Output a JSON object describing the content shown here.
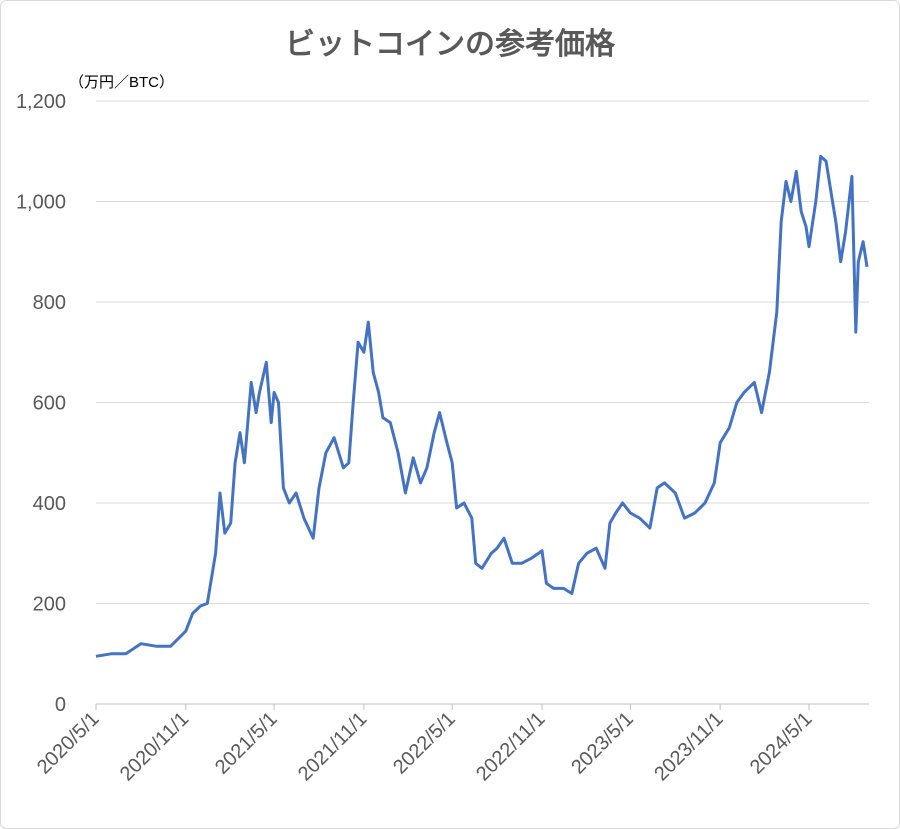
{
  "chart_data": {
    "type": "line",
    "title": "ビットコインの参考価格",
    "ylabel": "（万円／BTC）",
    "xlabel": "",
    "ylim": [
      0,
      1200
    ],
    "yticks": [
      0,
      200,
      400,
      600,
      800,
      1000,
      1200
    ],
    "ytick_labels": [
      "0",
      "200",
      "400",
      "600",
      "800",
      "1,000",
      "1,200"
    ],
    "xticks": [
      "2020/5/1",
      "2020/11/1",
      "2021/5/1",
      "2021/11/1",
      "2022/5/1",
      "2022/11/1",
      "2023/5/1",
      "2023/11/1",
      "2024/5/1"
    ],
    "xlim": [
      "2020/5/1",
      "2024/9/1"
    ],
    "grid": "horizontal",
    "color": "#4472C4",
    "series": [
      {
        "points": [
          [
            "2020/5/1",
            95
          ],
          [
            "2020/6/1",
            100
          ],
          [
            "2020/7/1",
            100
          ],
          [
            "2020/8/1",
            120
          ],
          [
            "2020/9/1",
            115
          ],
          [
            "2020/10/1",
            115
          ],
          [
            "2020/11/1",
            145
          ],
          [
            "2020/11/15",
            180
          ],
          [
            "2020/12/1",
            195
          ],
          [
            "2020/12/15",
            200
          ],
          [
            "2021/1/1",
            300
          ],
          [
            "2021/1/10",
            420
          ],
          [
            "2021/1/20",
            340
          ],
          [
            "2021/2/1",
            360
          ],
          [
            "2021/2/10",
            480
          ],
          [
            "2021/2/20",
            540
          ],
          [
            "2021/3/1",
            480
          ],
          [
            "2021/3/15",
            640
          ],
          [
            "2021/3/25",
            580
          ],
          [
            "2021/4/1",
            620
          ],
          [
            "2021/4/15",
            680
          ],
          [
            "2021/4/25",
            560
          ],
          [
            "2021/5/1",
            620
          ],
          [
            "2021/5/10",
            600
          ],
          [
            "2021/5/20",
            430
          ],
          [
            "2021/6/1",
            400
          ],
          [
            "2021/6/15",
            420
          ],
          [
            "2021/7/1",
            370
          ],
          [
            "2021/7/20",
            330
          ],
          [
            "2021/8/1",
            430
          ],
          [
            "2021/8/15",
            500
          ],
          [
            "2021/9/1",
            530
          ],
          [
            "2021/9/20",
            470
          ],
          [
            "2021/10/1",
            480
          ],
          [
            "2021/10/10",
            600
          ],
          [
            "2021/10/20",
            720
          ],
          [
            "2021/11/1",
            700
          ],
          [
            "2021/11/10",
            760
          ],
          [
            "2021/11/20",
            660
          ],
          [
            "2021/12/1",
            620
          ],
          [
            "2021/12/10",
            570
          ],
          [
            "2021/12/25",
            560
          ],
          [
            "2022/1/10",
            500
          ],
          [
            "2022/1/25",
            420
          ],
          [
            "2022/2/10",
            490
          ],
          [
            "2022/2/25",
            440
          ],
          [
            "2022/3/10",
            470
          ],
          [
            "2022/3/25",
            540
          ],
          [
            "2022/4/5",
            580
          ],
          [
            "2022/4/20",
            520
          ],
          [
            "2022/5/1",
            480
          ],
          [
            "2022/5/10",
            390
          ],
          [
            "2022/5/25",
            400
          ],
          [
            "2022/6/10",
            370
          ],
          [
            "2022/6/18",
            280
          ],
          [
            "2022/7/1",
            270
          ],
          [
            "2022/7/20",
            300
          ],
          [
            "2022/8/1",
            310
          ],
          [
            "2022/8/15",
            330
          ],
          [
            "2022/9/1",
            280
          ],
          [
            "2022/9/20",
            280
          ],
          [
            "2022/10/10",
            290
          ],
          [
            "2022/10/25",
            300
          ],
          [
            "2022/11/1",
            305
          ],
          [
            "2022/11/10",
            240
          ],
          [
            "2022/11/25",
            230
          ],
          [
            "2022/12/15",
            230
          ],
          [
            "2023/1/1",
            220
          ],
          [
            "2023/1/15",
            280
          ],
          [
            "2023/2/1",
            300
          ],
          [
            "2023/2/20",
            310
          ],
          [
            "2023/3/10",
            270
          ],
          [
            "2023/3/20",
            360
          ],
          [
            "2023/4/1",
            380
          ],
          [
            "2023/4/15",
            400
          ],
          [
            "2023/5/1",
            380
          ],
          [
            "2023/5/20",
            370
          ],
          [
            "2023/6/10",
            350
          ],
          [
            "2023/6/25",
            430
          ],
          [
            "2023/7/10",
            440
          ],
          [
            "2023/8/1",
            420
          ],
          [
            "2023/8/20",
            370
          ],
          [
            "2023/9/10",
            380
          ],
          [
            "2023/10/1",
            400
          ],
          [
            "2023/10/20",
            440
          ],
          [
            "2023/11/1",
            520
          ],
          [
            "2023/11/20",
            550
          ],
          [
            "2023/12/5",
            600
          ],
          [
            "2023/12/20",
            620
          ],
          [
            "2024/1/10",
            640
          ],
          [
            "2024/1/25",
            580
          ],
          [
            "2024/2/10",
            660
          ],
          [
            "2024/2/25",
            780
          ],
          [
            "2024/3/5",
            960
          ],
          [
            "2024/3/15",
            1040
          ],
          [
            "2024/3/25",
            1000
          ],
          [
            "2024/4/5",
            1060
          ],
          [
            "2024/4/15",
            980
          ],
          [
            "2024/4/25",
            950
          ],
          [
            "2024/5/1",
            910
          ],
          [
            "2024/5/15",
            1000
          ],
          [
            "2024/5/25",
            1090
          ],
          [
            "2024/6/5",
            1080
          ],
          [
            "2024/6/15",
            1020
          ],
          [
            "2024/6/25",
            960
          ],
          [
            "2024/7/5",
            880
          ],
          [
            "2024/7/15",
            940
          ],
          [
            "2024/7/28",
            1050
          ],
          [
            "2024/8/5",
            740
          ],
          [
            "2024/8/10",
            880
          ],
          [
            "2024/8/20",
            920
          ],
          [
            "2024/8/28",
            870
          ]
        ]
      }
    ]
  }
}
